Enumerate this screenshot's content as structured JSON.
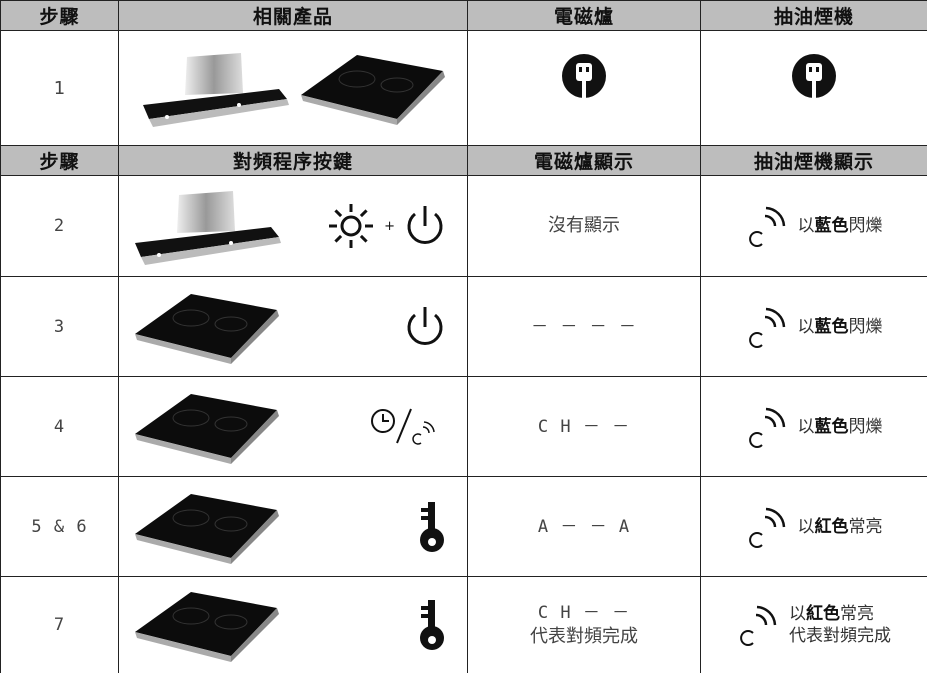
{
  "table1": {
    "headers": [
      "步驟",
      "相關產品",
      "電磁爐",
      "抽油煙機"
    ],
    "rows": [
      {
        "step": "1"
      }
    ]
  },
  "table2": {
    "headers": [
      "步驟",
      "對頻程序按鍵",
      "電磁爐顯示",
      "抽油煙機顯示"
    ],
    "plus": "+",
    "rows": [
      {
        "step": "2",
        "hob_display": [
          "沒有顯示"
        ],
        "hood_display": {
          "pre": "以",
          "bold": "藍色",
          "post": "閃爍"
        }
      },
      {
        "step": "3",
        "hob_display": [
          "－ － － －"
        ],
        "hood_display": {
          "pre": "以",
          "bold": "藍色",
          "post": "閃爍"
        }
      },
      {
        "step": "4",
        "hob_display": [
          "C H － －"
        ],
        "hood_display": {
          "pre": "以",
          "bold": "藍色",
          "post": "閃爍"
        }
      },
      {
        "step": "5 & 6",
        "hob_display": [
          "A － － A"
        ],
        "hood_display": {
          "pre": "以",
          "bold": "紅色",
          "post": "常亮"
        }
      },
      {
        "step": "7",
        "hob_display": [
          "C H － －",
          "代表對頻完成"
        ],
        "hood_display": {
          "pre": "以",
          "bold": "紅色",
          "post": "常亮",
          "line2": "代表對頻完成"
        }
      }
    ]
  }
}
